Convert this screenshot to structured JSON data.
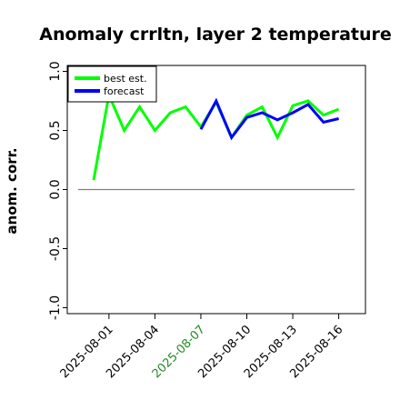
{
  "chart_data": {
    "type": "line",
    "title": "Anomaly crrltn, layer 2 temperature",
    "ylabel": "anom. corr.",
    "xlabel": "",
    "ylim": [
      -1.05,
      1.05
    ],
    "yticks": [
      "-1.0",
      "-0.5",
      "0.0",
      "0.5",
      "1.0"
    ],
    "ytick_values": [
      -1.0,
      -0.5,
      0.0,
      0.5,
      1.0
    ],
    "x": [
      "2025-07-31",
      "2025-08-01",
      "2025-08-02",
      "2025-08-03",
      "2025-08-04",
      "2025-08-05",
      "2025-08-06",
      "2025-08-07",
      "2025-08-08",
      "2025-08-09",
      "2025-08-10",
      "2025-08-11",
      "2025-08-12",
      "2025-08-13",
      "2025-08-14",
      "2025-08-15",
      "2025-08-16"
    ],
    "xticks": [
      {
        "label": "2025-08-01",
        "color": "#000000"
      },
      {
        "label": "2025-08-04",
        "color": "#000000"
      },
      {
        "label": "2025-08-07",
        "color": "#228B22"
      },
      {
        "label": "2025-08-10",
        "color": "#000000"
      },
      {
        "label": "2025-08-13",
        "color": "#000000"
      },
      {
        "label": "2025-08-16",
        "color": "#000000"
      }
    ],
    "reference_line": 0.0,
    "legend_position": "upper-left",
    "grid": false,
    "series": [
      {
        "name": "best est.",
        "color": "#00ff00",
        "values": [
          0.08,
          0.8,
          0.5,
          0.7,
          0.5,
          0.65,
          0.7,
          0.53,
          0.74,
          0.44,
          0.63,
          0.7,
          0.44,
          0.71,
          0.75,
          0.63,
          0.68
        ]
      },
      {
        "name": "forecast",
        "color": "#0000ff",
        "values": [
          null,
          null,
          null,
          null,
          null,
          null,
          null,
          0.51,
          0.75,
          0.44,
          0.61,
          0.65,
          0.59,
          0.65,
          0.72,
          0.57,
          0.6
        ]
      }
    ]
  }
}
